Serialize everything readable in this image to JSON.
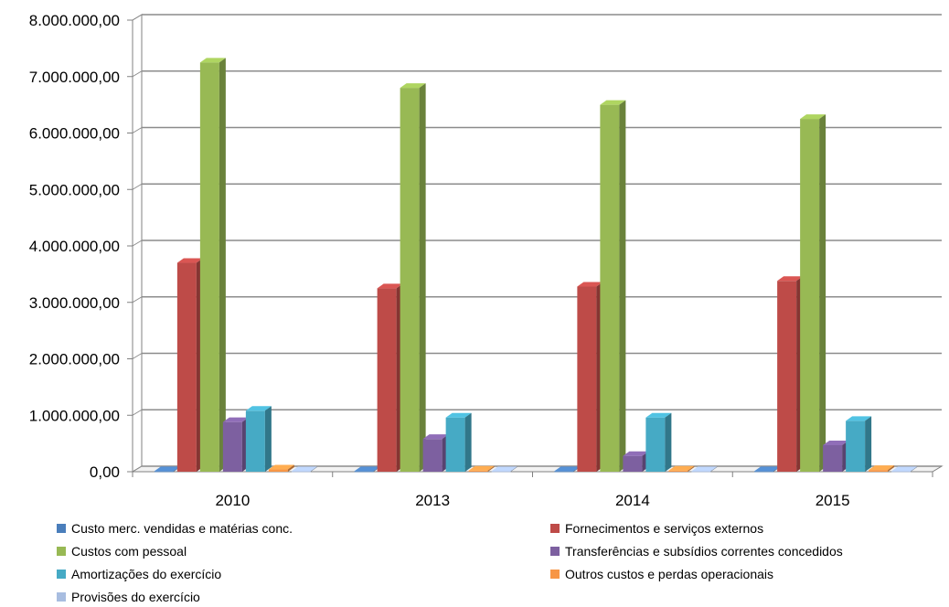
{
  "chart_data": {
    "type": "bar",
    "title": "",
    "xlabel": "",
    "ylabel": "",
    "categories": [
      "2010",
      "2013",
      "2014",
      "2015"
    ],
    "ylim": [
      0,
      8000000
    ],
    "yticks": [
      0,
      1000000,
      2000000,
      3000000,
      4000000,
      5000000,
      6000000,
      7000000,
      8000000
    ],
    "ytick_labels": [
      "0,00",
      "1.000.000,00",
      "2.000.000,00",
      "3.000.000,00",
      "4.000.000,00",
      "5.000.000,00",
      "6.000.000,00",
      "7.000.000,00",
      "8.000.000,00"
    ],
    "grid": true,
    "legend_position": "bottom",
    "series": [
      {
        "name": "Custo merc. vendidas e matérias conc.",
        "color": "#4a7ebb",
        "values": [
          10000,
          10000,
          10000,
          10000
        ]
      },
      {
        "name": "Fornecimentos e serviços externos",
        "color": "#be4b48",
        "values": [
          3700000,
          3250000,
          3280000,
          3380000
        ]
      },
      {
        "name": "Custos com pessoal",
        "color": "#98b954",
        "values": [
          7250000,
          6800000,
          6500000,
          6250000
        ]
      },
      {
        "name": "Transferências e subsídios correntes concedidos",
        "color": "#7d60a0",
        "values": [
          880000,
          580000,
          280000,
          470000
        ]
      },
      {
        "name": "Amortizações do exercício",
        "color": "#46aac5",
        "values": [
          1080000,
          960000,
          960000,
          900000
        ]
      },
      {
        "name": "Outros custos e perdas operacionais",
        "color": "#f79646",
        "values": [
          40000,
          20000,
          20000,
          30000
        ]
      },
      {
        "name": "Provisões do exercício",
        "color": "#a8bde0",
        "values": [
          10000,
          10000,
          10000,
          10000
        ]
      }
    ]
  }
}
